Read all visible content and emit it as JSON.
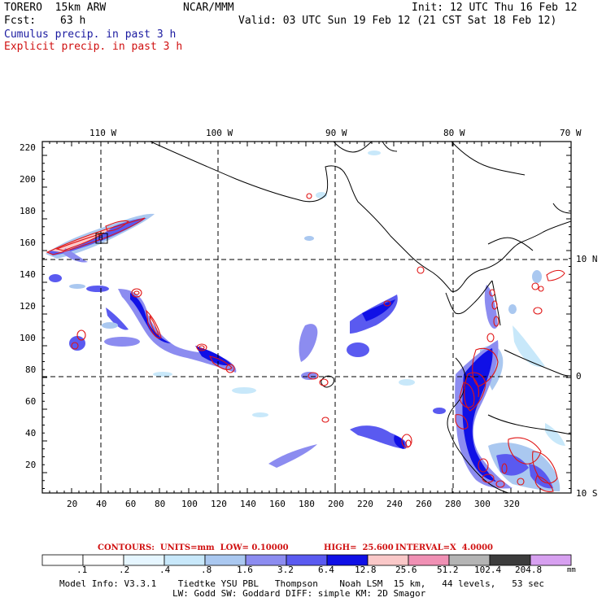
{
  "header": {
    "model": "TORERO  15km ARW",
    "center": "NCAR/MMM",
    "init": "Init: 12 UTC Thu 16 Feb 12",
    "fcst_label": "Fcst:",
    "fcst_value": "63 h",
    "valid": "Valid: 03 UTC Sun 19 Feb 12 (21 CST Sat 18 Feb 12)",
    "field1": "Cumulus precip. in past 3 h",
    "field2": "Explicit precip. in past 3 h"
  },
  "map": {
    "lon_labels": [
      "110 W",
      "100 W",
      "90 W",
      "80 W",
      "70 W"
    ],
    "lat_labels": [
      "10 N",
      "0",
      "10 S"
    ],
    "y_ticks": [
      "220",
      "200",
      "180",
      "160",
      "140",
      "120",
      "100",
      "80",
      "60",
      "40",
      "20"
    ],
    "x_ticks": [
      "20",
      "40",
      "60",
      "80",
      "100",
      "120",
      "140",
      "160",
      "180",
      "200",
      "220",
      "240",
      "260",
      "280",
      "300",
      "320"
    ],
    "box_label": "H"
  },
  "contours": {
    "units": "CONTOURS:  UNITS=mm  LOW= 0.10000",
    "high": "HIGH=  25.600",
    "interval": "INTERVAL=X  4.0000"
  },
  "colorbar": {
    "labels": [
      ".1",
      ".2",
      ".4",
      ".8",
      "1.6",
      "3.2",
      "6.4",
      "12.8",
      "25.6",
      "51.2",
      "102.4",
      "204.8"
    ],
    "unit": "mm",
    "colors": [
      "#ffffff",
      "#ffffff",
      "#e6f6ff",
      "#c8e8fa",
      "#aac8f0",
      "#8c8cf0",
      "#5a5af0",
      "#1010e6",
      "#fac8c8",
      "#f090b4",
      "#b4b4b4",
      "#3c3c3c",
      "#d7a0f0"
    ]
  },
  "footer": {
    "line1": "Model Info: V3.3.1    Tiedtke YSU PBL   Thompson    Noah LSM  15 km,   44 levels,   53 sec",
    "line2": "LW: Godd SW: Goddard DIFF: simple KM: 2D Smagor"
  }
}
